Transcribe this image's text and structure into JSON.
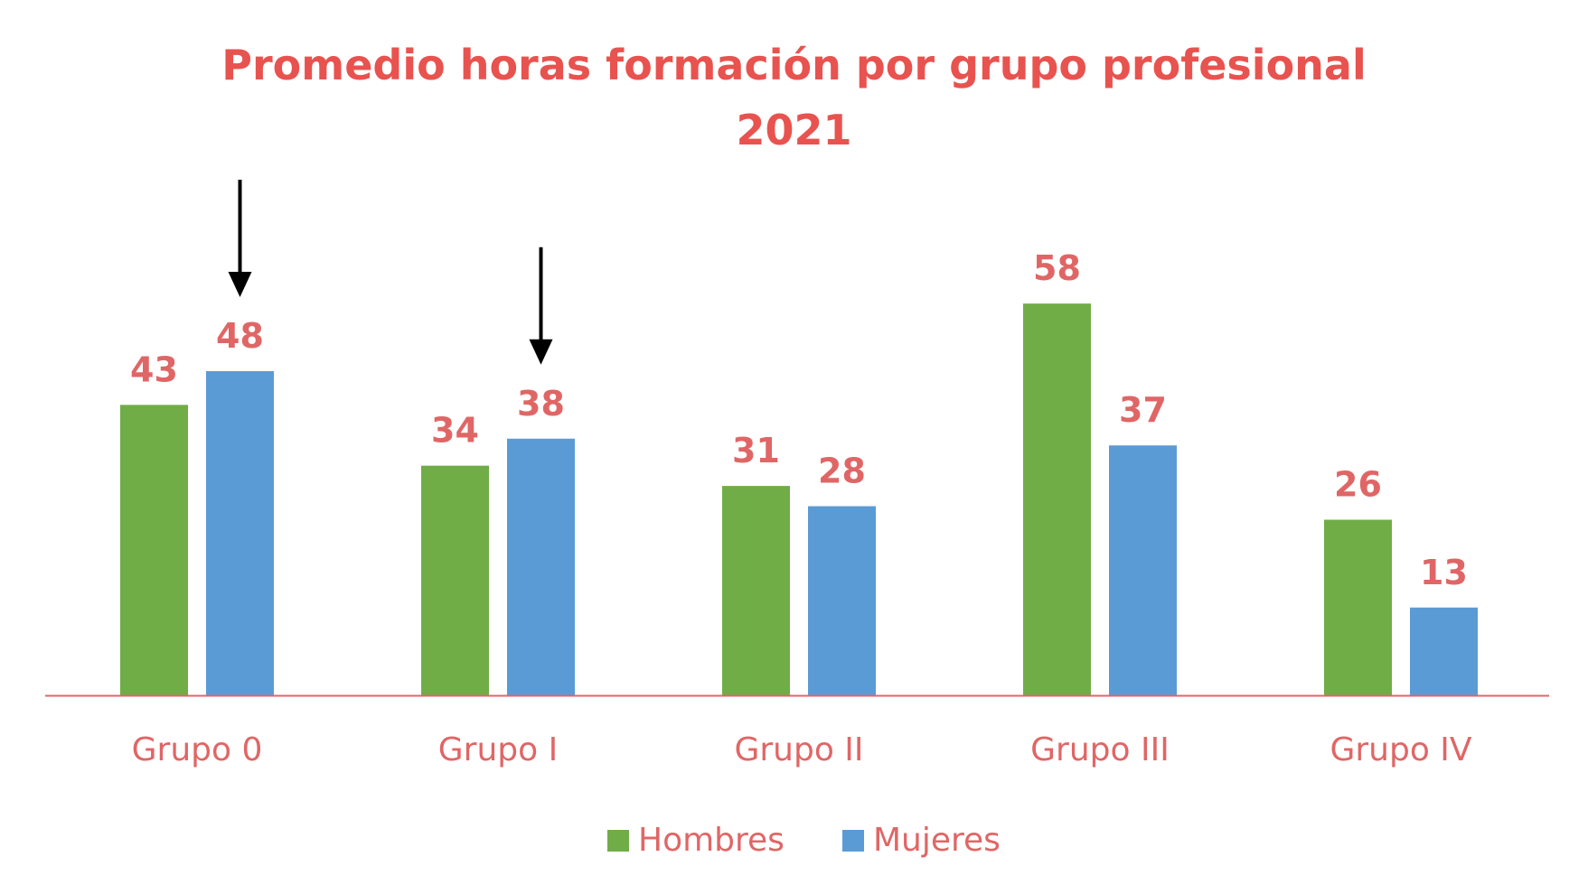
{
  "chart_data": {
    "type": "bar",
    "title": "Promedio horas formación por grupo profesional",
    "subtitle": "2021",
    "xlabel": "",
    "ylabel": "",
    "categories": [
      "Grupo 0",
      "Grupo I",
      "Grupo II",
      "Grupo III",
      "Grupo IV"
    ],
    "series": [
      {
        "name": "Hombres",
        "values": [
          43,
          34,
          31,
          58,
          26
        ],
        "color": "#70ad47"
      },
      {
        "name": "Mujeres",
        "values": [
          48,
          38,
          28,
          37,
          13
        ],
        "color": "#5b9bd5"
      }
    ],
    "ylim": [
      0,
      58
    ],
    "grid": false,
    "legend": "bottom",
    "data_labels": true,
    "label_color": "#e06666",
    "title_color": "#e8534f",
    "axis_color": "#e06666",
    "annotations": [
      {
        "type": "arrow-down",
        "category": "Grupo 0",
        "series": "Mujeres"
      },
      {
        "type": "arrow-down",
        "category": "Grupo I",
        "series": "Mujeres"
      }
    ]
  }
}
